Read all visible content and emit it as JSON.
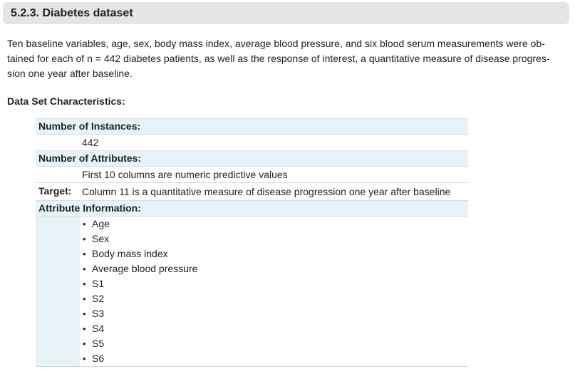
{
  "section": {
    "title": "5.2.3. Diabetes dataset"
  },
  "intro": {
    "lines": [
      "Ten baseline variables, age, sex, body mass index, average blood pressure, and six blood serum measurements were ob-",
      "tained for each of n = 442 diabetes patients, as well as the response of interest, a quantitative measure of disease progres-",
      "sion one year after baseline."
    ]
  },
  "characteristics": {
    "heading": "Data Set Characteristics:",
    "instances_label": "Number of Instances:",
    "instances_value": "442",
    "attributes_label": "Number of Attributes:",
    "attributes_value": "First 10 columns are numeric predictive values",
    "target_label": "Target:",
    "target_value": "Column 11 is a quantitative measure of disease progression one year after baseline",
    "attr_info_label": "Attribute Information:",
    "attributes": [
      "Age",
      "Sex",
      "Body mass index",
      "Average blood pressure",
      "S1",
      "S2",
      "S3",
      "S4",
      "S5",
      "S6"
    ]
  },
  "icons": {
    "bullet": "•"
  },
  "colors": {
    "heading_bg": "#e5e5e5",
    "field_label_bg": "#e8f3f8",
    "text": "#222222"
  }
}
